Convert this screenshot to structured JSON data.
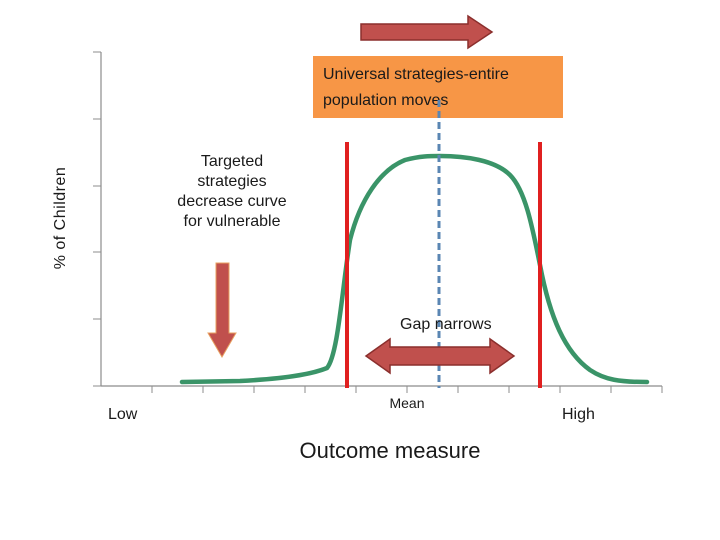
{
  "diagram": {
    "y_axis_label": "% of Children",
    "x_axis_label": "Outcome measure",
    "low_label": "Low",
    "high_label": "High",
    "mean_label": "Mean",
    "universal_box": {
      "lines": [
        "Universal strategies-entire",
        "population moves"
      ]
    },
    "targeted_text": {
      "lines": [
        "Targeted",
        "strategies",
        "decrease curve",
        "for vulnerable"
      ]
    },
    "gap_label": "Gap narrows",
    "colors": {
      "curve": "#3a9468",
      "axis": "#8c8c8c",
      "threshold_lines": "#e02020",
      "mean_line": "#5a86b3",
      "arrow_fill": "#c0504d",
      "arrow_stroke": "#8b2f2d",
      "universal_box": "#f79646"
    },
    "icons": [
      "arrow-right-icon",
      "arrow-down-icon",
      "double-arrow-icon"
    ]
  }
}
